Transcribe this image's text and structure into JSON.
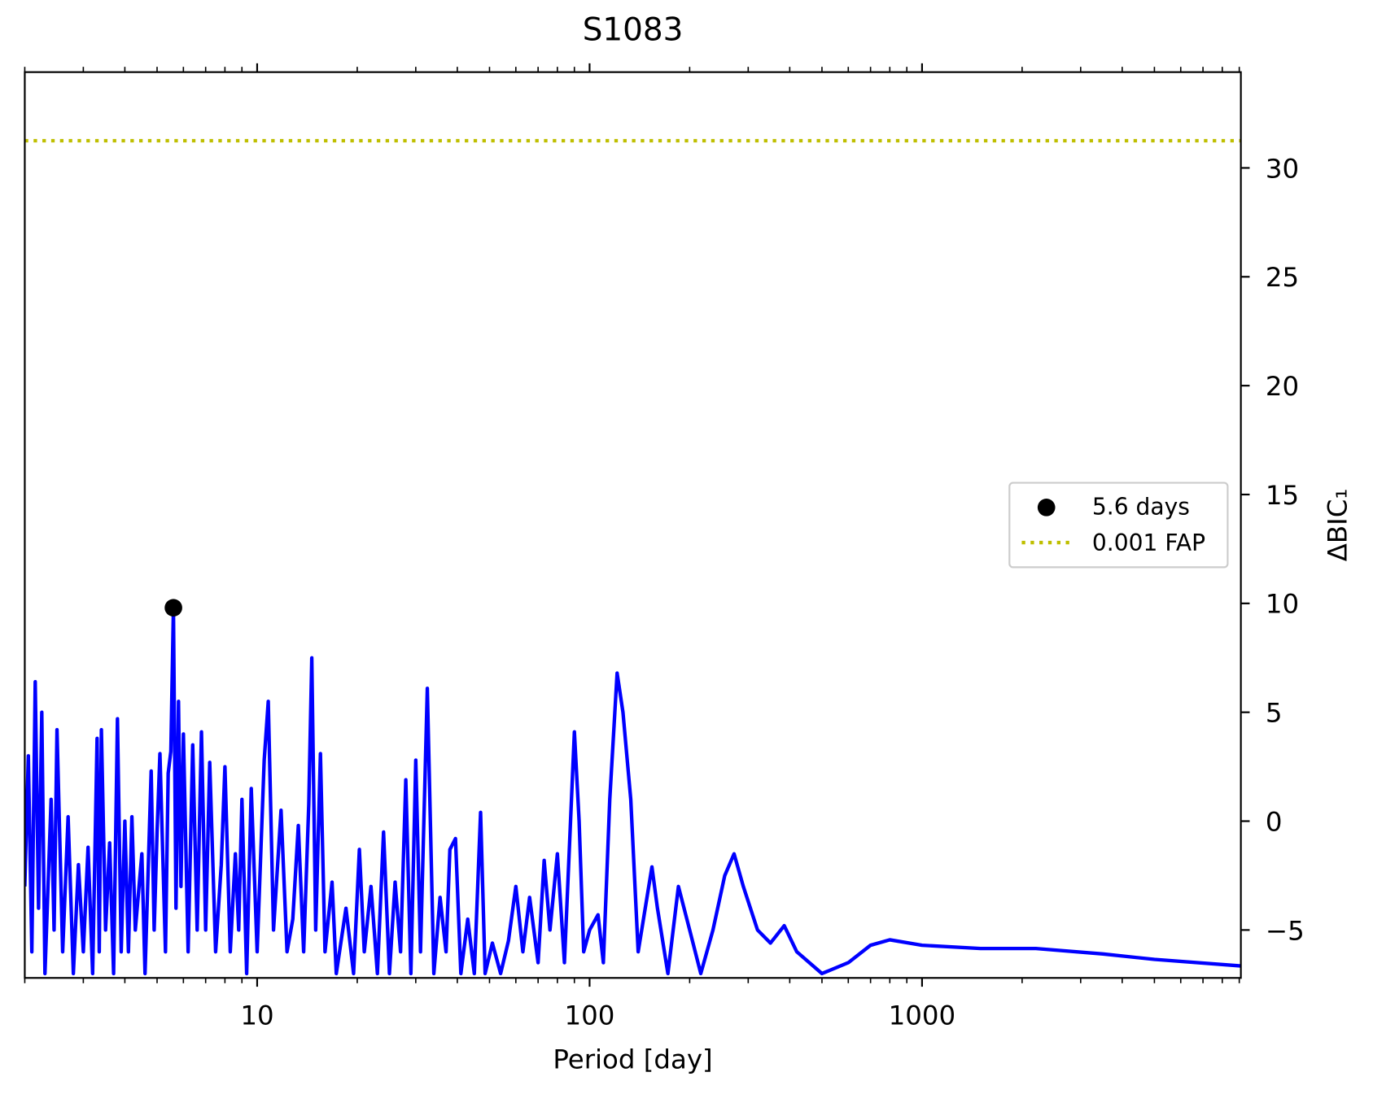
{
  "chart_data": {
    "type": "line",
    "title": "S1083",
    "x_label": "Period [day]",
    "y_label": "ΔBIC₁",
    "x_scale": "log",
    "y_axis_side": "right",
    "grid": false,
    "legend_position": "right",
    "color": "blue",
    "xlim": [
      2,
      9100
    ],
    "ylim": [
      -7.2,
      34.4
    ],
    "xticks": [
      10,
      100,
      1000
    ],
    "xminorticks": [
      2,
      3,
      4,
      5,
      6,
      7,
      8,
      9,
      20,
      30,
      40,
      50,
      60,
      70,
      80,
      90,
      200,
      300,
      400,
      500,
      600,
      700,
      800,
      900,
      2000,
      3000,
      4000,
      5000,
      6000,
      7000,
      8000,
      9000
    ],
    "yticks": [
      {
        "value": -5,
        "label": "−5"
      },
      0,
      5,
      10,
      15,
      20,
      25,
      30
    ],
    "x": [
      2.0,
      2.05,
      2.1,
      2.15,
      2.2,
      2.25,
      2.3,
      2.4,
      2.45,
      2.5,
      2.6,
      2.7,
      2.8,
      2.9,
      3.0,
      3.1,
      3.2,
      3.3,
      3.35,
      3.4,
      3.5,
      3.6,
      3.7,
      3.8,
      3.9,
      4.0,
      4.1,
      4.2,
      4.3,
      4.5,
      4.6,
      4.8,
      4.9,
      5.0,
      5.1,
      5.3,
      5.4,
      5.5,
      5.6,
      5.7,
      5.8,
      5.9,
      6.0,
      6.2,
      6.4,
      6.6,
      6.8,
      7.0,
      7.2,
      7.5,
      7.8,
      8.0,
      8.3,
      8.6,
      8.8,
      9.0,
      9.3,
      9.6,
      10,
      10.5,
      10.8,
      11.2,
      11.8,
      12.3,
      12.8,
      13.3,
      13.8,
      14.3,
      14.6,
      15.0,
      15.5,
      16,
      16.8,
      17.3,
      18.5,
      19.5,
      20.3,
      21,
      22,
      23,
      24,
      25,
      26,
      27,
      28,
      29,
      30,
      31,
      32.5,
      34,
      35.5,
      37,
      38,
      39.5,
      41,
      43,
      45,
      47,
      48.5,
      51,
      54,
      57,
      60,
      63,
      66,
      70,
      73,
      76,
      80,
      84,
      90,
      93,
      96,
      100,
      106,
      110,
      115,
      121,
      126,
      133,
      140,
      147,
      154,
      160,
      172,
      185,
      200,
      216,
      235,
      255,
      272,
      290,
      320,
      350,
      385,
      420,
      500,
      600,
      700,
      800,
      1000,
      1500,
      2200,
      3500,
      5000,
      9100
    ],
    "values": [
      -3,
      3,
      -6,
      6.4,
      -4,
      5,
      -7,
      1,
      -5,
      4.2,
      -6,
      0.2,
      -7,
      -2,
      -6,
      -1.2,
      -7,
      3.8,
      -6,
      4.2,
      -5,
      -1,
      -7,
      4.7,
      -6,
      0,
      -6,
      0.2,
      -5,
      -1.5,
      -7,
      2.3,
      -5,
      -0.5,
      3.1,
      -6,
      2.2,
      3.2,
      9.8,
      -4,
      5.5,
      -3,
      4,
      -6,
      3.5,
      -5,
      4.1,
      -5,
      2.7,
      -6,
      -2,
      2.5,
      -6,
      -1.5,
      -5,
      1,
      -7,
      1.5,
      -6,
      2.8,
      5.5,
      -5,
      0.5,
      -6,
      -4.5,
      -0.2,
      -6,
      0.8,
      7.5,
      -5,
      3.1,
      -6,
      -2.8,
      -7,
      -4,
      -7,
      -1.3,
      -6,
      -3,
      -7,
      -0.5,
      -7,
      -2.8,
      -6,
      1.9,
      -7,
      2.8,
      -6,
      6.1,
      -7,
      -3.5,
      -6,
      -1.3,
      -0.8,
      -7,
      -4.5,
      -7,
      0.4,
      -7,
      -5.6,
      -7,
      -5.5,
      -3,
      -6,
      -3.5,
      -6.5,
      -1.8,
      -5,
      -1.5,
      -6.5,
      4.1,
      0,
      -6,
      -5,
      -4.3,
      -6.5,
      1,
      6.8,
      5,
      1,
      -6,
      -4,
      -2.1,
      -4,
      -7,
      -3,
      -5,
      -7,
      -5,
      -2.5,
      -1.5,
      -3,
      -5,
      -5.6,
      -4.8,
      -6,
      -7,
      -6.5,
      -5.7,
      -5.45,
      -5.7,
      -5.85,
      -5.85,
      -6.1,
      -6.35,
      -6.65
    ],
    "peak": {
      "name": "5.6 days",
      "x": 5.6,
      "value": 9.8,
      "color": "black"
    },
    "fap": {
      "name": "0.001 FAP",
      "value": 31.25,
      "color": "#bfbf00"
    }
  }
}
